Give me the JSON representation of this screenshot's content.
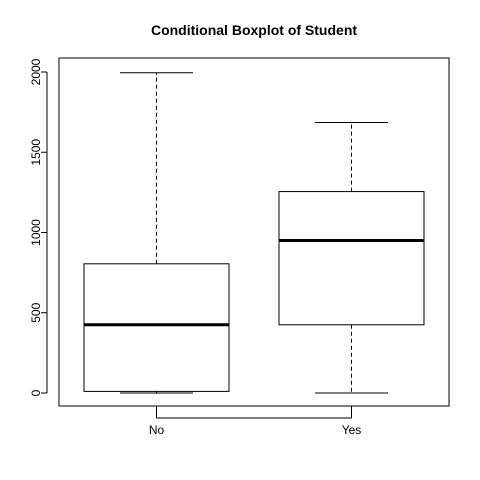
{
  "chart_data": {
    "type": "boxplot",
    "title": "Conditional Boxplot of Student",
    "xlabel": "",
    "ylabel": "",
    "categories": [
      "No",
      "Yes"
    ],
    "boxes": [
      {
        "category": "No",
        "min": 0,
        "q1": 10,
        "median": 425,
        "q3": 805,
        "max": 1995
      },
      {
        "category": "Yes",
        "min": 0,
        "q1": 425,
        "median": 950,
        "q3": 1255,
        "max": 1685
      }
    ],
    "yticks": [
      0,
      500,
      1000,
      1500,
      2000
    ],
    "ytick_labels": [
      "0",
      "500",
      "1000",
      "1500",
      "2000"
    ],
    "ylim": [
      -80,
      2080
    ],
    "grid": false,
    "legend": "none",
    "colors": {
      "box_fill": "#ffffff",
      "stroke": "#000000"
    }
  }
}
